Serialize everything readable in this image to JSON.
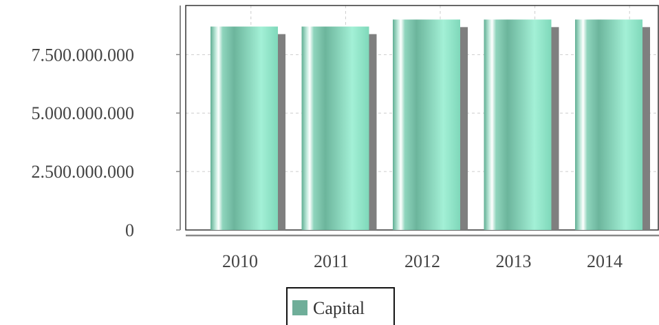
{
  "chart_data": {
    "type": "bar",
    "categories": [
      "2010",
      "2011",
      "2012",
      "2013",
      "2014"
    ],
    "series": [
      {
        "name": "Capital",
        "values": [
          8700000000,
          8700000000,
          9000000000,
          9000000000,
          9000000000
        ]
      }
    ],
    "yticks": [
      0,
      2500000000,
      5000000000,
      7500000000
    ],
    "ytick_labels": [
      "0",
      "2.500.000.000",
      "5.000.000.000",
      "7.500.000.000"
    ],
    "ylim": [
      0,
      9600000000
    ],
    "xlabel": "",
    "ylabel": "",
    "title": "",
    "grid": true,
    "legend": {
      "position": "bottom-center"
    },
    "colors": {
      "bar_main": "#8fe3c8",
      "bar_dark": "#5aa98f",
      "bar_light": "#ffffff",
      "shadow": "#7f7f7f",
      "legend_swatch": "#6fae99",
      "grid": "#cccccc",
      "axis": "#888888",
      "frame": "#333333"
    }
  }
}
